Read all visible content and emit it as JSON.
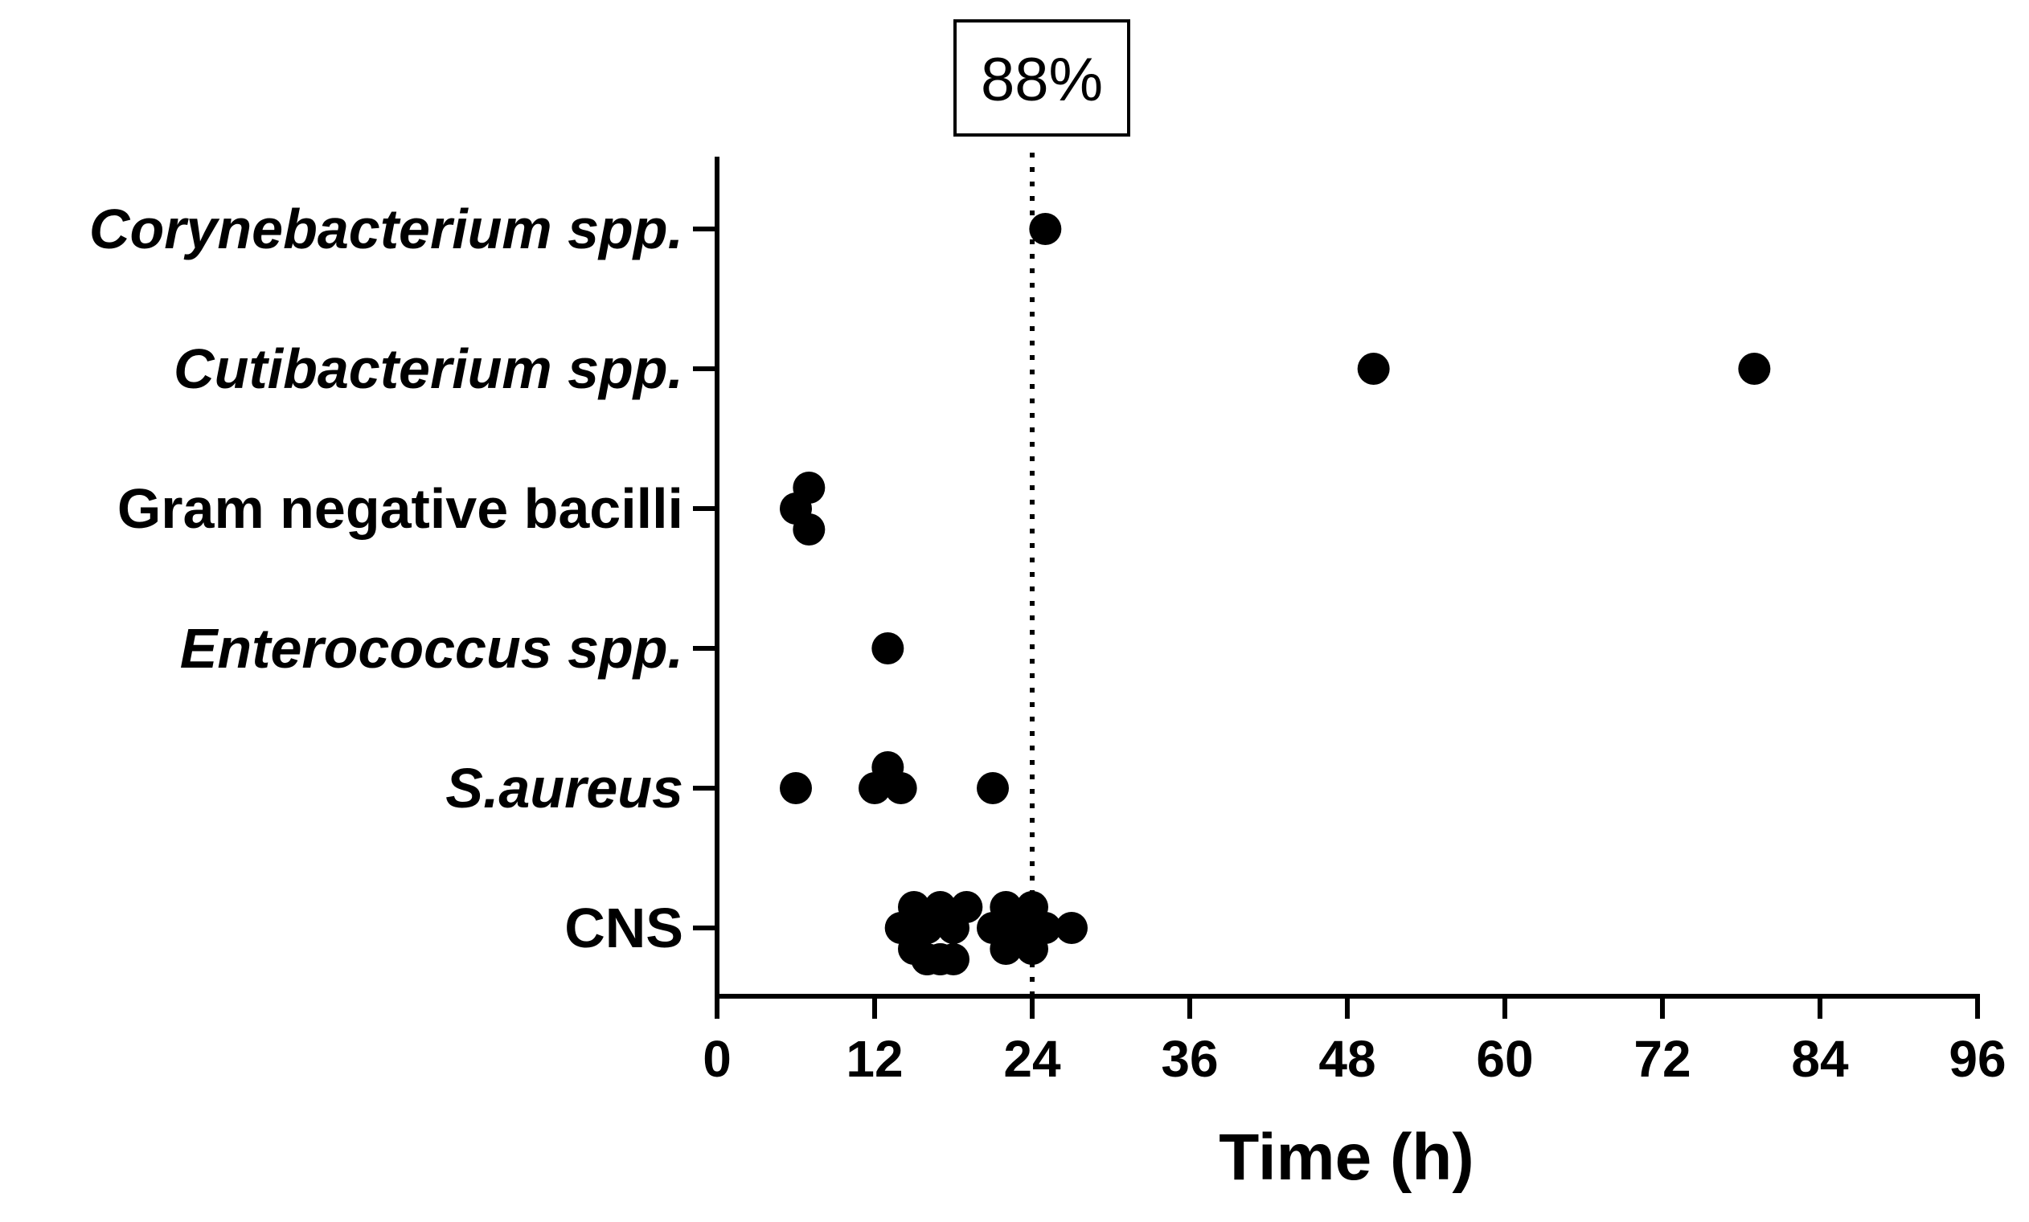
{
  "chart_data": {
    "type": "scatter",
    "xlabel": "Time (h)",
    "ylabel": "",
    "xlim": [
      0,
      96
    ],
    "x_ticks": [
      0,
      12,
      24,
      36,
      48,
      60,
      72,
      84,
      96
    ],
    "x_tick_labels": [
      "0",
      "12",
      "24",
      "36",
      "48",
      "60",
      "72",
      "84",
      "96"
    ],
    "categories": [
      {
        "label": "Corynebacterium spp.",
        "italic": true
      },
      {
        "label": "Cutibacterium spp.",
        "italic": true
      },
      {
        "label": "Gram negative bacilli",
        "italic": false
      },
      {
        "label": "Enterococcus spp.",
        "italic": true
      },
      {
        "label": "S.aureus",
        "italic": true
      },
      {
        "label": "CNS",
        "italic": false
      }
    ],
    "reference_line": {
      "x": 24,
      "style": "dotted"
    },
    "annotation": "88%",
    "marker_color": "#000000",
    "series": [
      {
        "category": "Corynebacterium spp.",
        "points": [
          {
            "x": 25
          }
        ]
      },
      {
        "category": "Cutibacterium spp.",
        "points": [
          {
            "x": 50
          },
          {
            "x": 79
          }
        ]
      },
      {
        "category": "Gram negative bacilli",
        "points": [
          {
            "x": 6
          },
          {
            "x": 7
          },
          {
            "x": 7
          }
        ]
      },
      {
        "category": "Enterococcus spp.",
        "points": [
          {
            "x": 13
          }
        ]
      },
      {
        "category": "S.aureus",
        "points": [
          {
            "x": 6
          },
          {
            "x": 12
          },
          {
            "x": 13
          },
          {
            "x": 14
          },
          {
            "x": 21
          }
        ]
      },
      {
        "category": "CNS",
        "points": [
          {
            "x": 14
          },
          {
            "x": 15
          },
          {
            "x": 15
          },
          {
            "x": 16
          },
          {
            "x": 16
          },
          {
            "x": 16
          },
          {
            "x": 17
          },
          {
            "x": 17
          },
          {
            "x": 17
          },
          {
            "x": 18
          },
          {
            "x": 18
          },
          {
            "x": 19
          },
          {
            "x": 21
          },
          {
            "x": 22
          },
          {
            "x": 22
          },
          {
            "x": 23
          },
          {
            "x": 24
          },
          {
            "x": 24
          },
          {
            "x": 25
          },
          {
            "x": 27
          }
        ]
      }
    ]
  }
}
